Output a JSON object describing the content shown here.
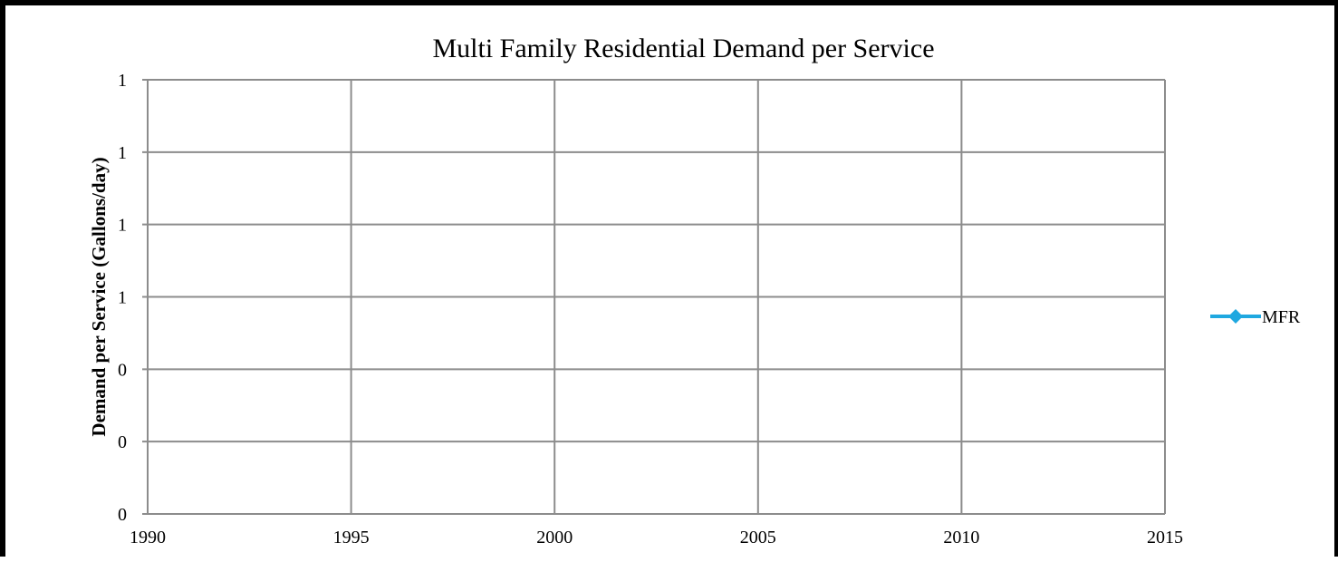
{
  "chart_data": {
    "type": "line",
    "title": "Multi Family Residential Demand per Service",
    "xlabel": "",
    "ylabel": "Demand per Service (Gallons/day)",
    "x_ticks": [
      "1990",
      "1995",
      "2000",
      "2005",
      "2010",
      "2015"
    ],
    "y_ticks": [
      "0",
      "0",
      "0",
      "1",
      "1",
      "1",
      "1"
    ],
    "xlim": [
      1990,
      2015
    ],
    "grid": true,
    "legend_position": "right",
    "series": [
      {
        "name": "MFR",
        "color": "#1FA8E0",
        "marker": "diamond",
        "x": [],
        "y": []
      }
    ]
  }
}
